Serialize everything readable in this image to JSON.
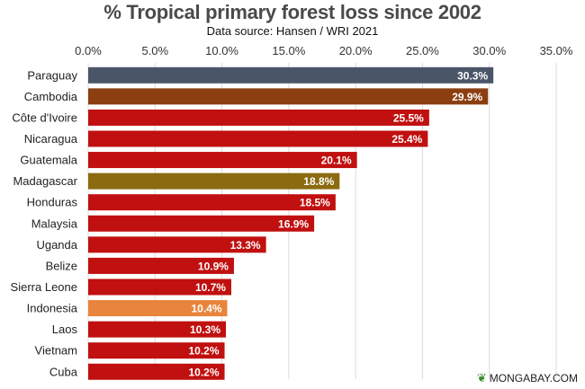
{
  "chart_data": {
    "type": "bar",
    "orientation": "horizontal",
    "title": "% Tropical primary forest loss since 2002",
    "subtitle": "Data source: Hansen / WRI 2021",
    "xlim": [
      0,
      35
    ],
    "x_ticks": [
      "0.0%",
      "5.0%",
      "10.0%",
      "15.0%",
      "20.0%",
      "25.0%",
      "30.0%",
      "35.0%"
    ],
    "x_tick_values": [
      0,
      5,
      10,
      15,
      20,
      25,
      30,
      35
    ],
    "grid": true,
    "categories": [
      "Paraguay",
      "Cambodia",
      "Côte d'Ivoire",
      "Nicaragua",
      "Guatemala",
      "Madagascar",
      "Honduras",
      "Malaysia",
      "Uganda",
      "Belize",
      "Sierra Leone",
      "Indonesia",
      "Laos",
      "Vietnam",
      "Cuba"
    ],
    "values": [
      30.3,
      29.9,
      25.5,
      25.4,
      20.1,
      18.8,
      18.5,
      16.9,
      13.3,
      10.9,
      10.7,
      10.4,
      10.3,
      10.2,
      10.2
    ],
    "value_labels": [
      "30.3%",
      "29.9%",
      "25.5%",
      "25.4%",
      "20.1%",
      "18.8%",
      "18.5%",
      "16.9%",
      "13.3%",
      "10.9%",
      "10.7%",
      "10.4%",
      "10.3%",
      "10.2%",
      "10.2%"
    ],
    "colors": [
      "#4a5568",
      "#8b3e0f",
      "#c0100f",
      "#c0100f",
      "#c0100f",
      "#8b6a10",
      "#c0100f",
      "#c0100f",
      "#c0100f",
      "#c0100f",
      "#c0100f",
      "#e8843c",
      "#c0100f",
      "#c0100f",
      "#c0100f"
    ]
  },
  "watermark": {
    "text": "MONGABAY.COM",
    "icon": "leaf-icon"
  }
}
